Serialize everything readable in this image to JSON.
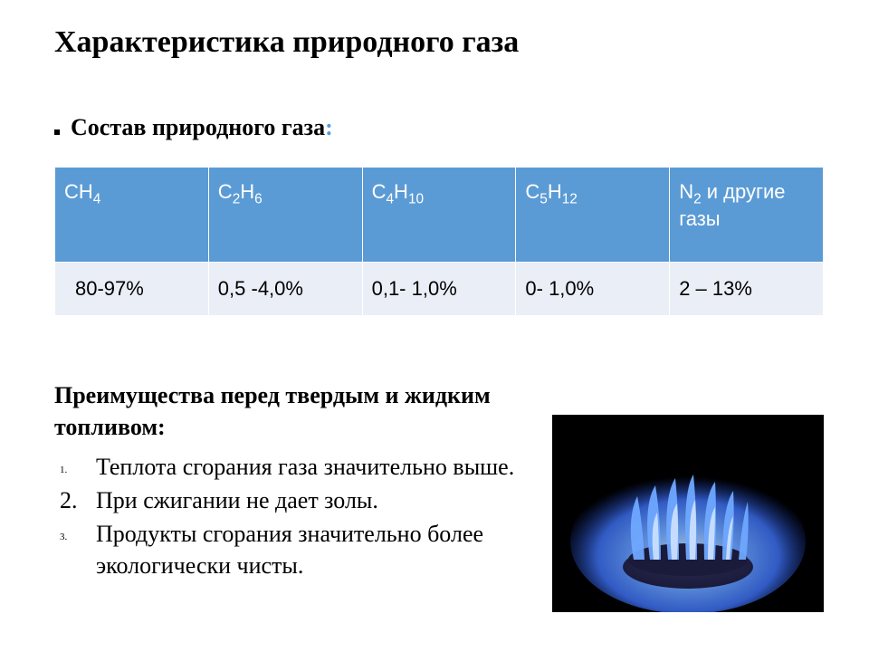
{
  "title": "Характеристика природного газа",
  "subtitle_label": "Состав природного газа",
  "composition_table": {
    "header_bg": "#5b9bd5",
    "row_bg": "#eaeff7",
    "columns": [
      {
        "formula_base": "CH",
        "formula_sub": "4",
        "value": "80-97%"
      },
      {
        "formula_base": "C",
        "formula_mid": "2",
        "formula_base2": "H",
        "formula_sub": "6",
        "value": "0,5 -4,0%"
      },
      {
        "formula_base": "C",
        "formula_mid": "4",
        "formula_base2": "H",
        "formula_sub": "10",
        "value": "0,1- 1,0%"
      },
      {
        "formula_base": "C",
        "formula_mid": "5",
        "formula_base2": "H",
        "formula_sub": "12",
        "value": "0- 1,0%"
      },
      {
        "formula_base": "N",
        "formula_sub": "2",
        "suffix": " и другие газы",
        "value": "2 – 13%"
      }
    ]
  },
  "advantages": {
    "heading": "Преимущества перед твердым и жидким топливом:",
    "items": [
      {
        "num": "1.",
        "small": true,
        "text": "Теплота сгорания газа значительно выше."
      },
      {
        "num": "2.",
        "small": false,
        "text": "При сжигании не дает золы."
      },
      {
        "num": "3.",
        "small": true,
        "text": "Продукты сгорания значительно более экологически чисты."
      }
    ]
  },
  "flame": {
    "outer_glow": "#1b3db0",
    "mid_glow": "#3a6be6",
    "flame_color": "#6fa8ff",
    "bright": "#cfe2ff",
    "burner_fill": "#1a1a3a",
    "burner_top": "#2c2c55"
  }
}
